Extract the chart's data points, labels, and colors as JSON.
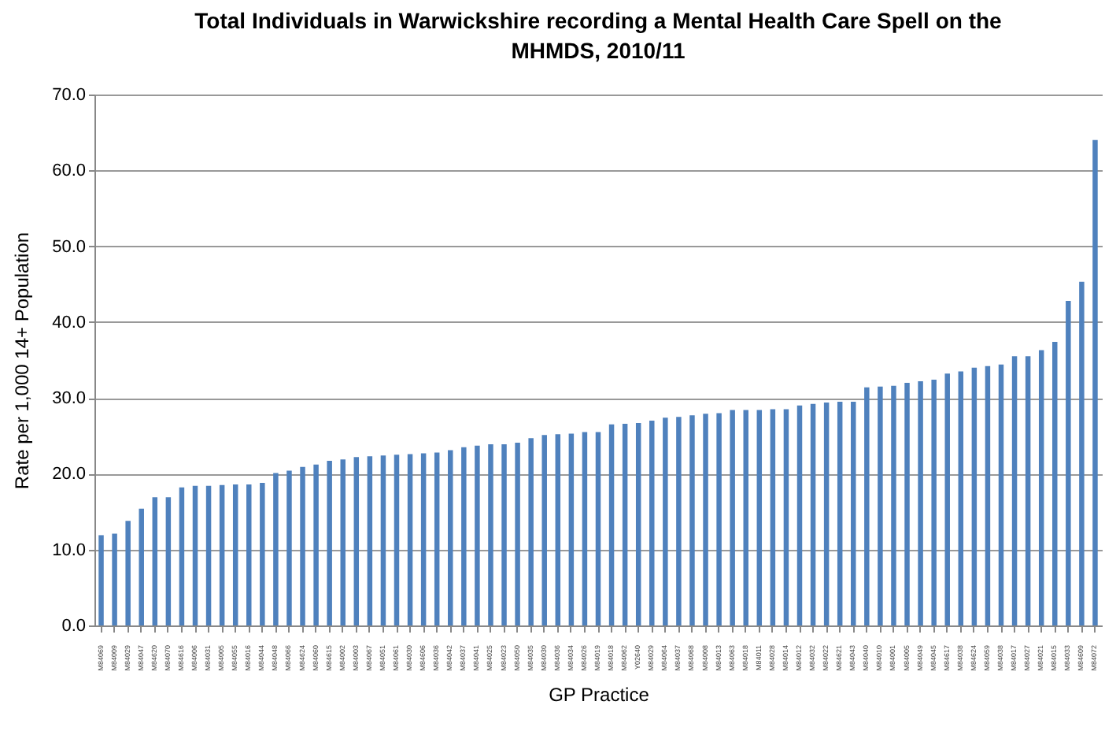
{
  "chart_data": {
    "type": "bar",
    "title": "Total Individuals in Warwickshire recording a Mental Health Care Spell on the MHMDS, 2010/11",
    "xlabel": "GP Practice",
    "ylabel": "Rate per 1,000 14+ Population",
    "categories": [
      "M84069",
      "M84009",
      "M84029",
      "M84047",
      "M84620",
      "M84070",
      "M84616",
      "M84006",
      "M84031",
      "M84005",
      "M84055",
      "M84016",
      "M84044",
      "M84048",
      "M84066",
      "M84624",
      "M84060",
      "M84615",
      "M84002",
      "M84003",
      "M84067",
      "M84051",
      "M84061",
      "M84030",
      "M84606",
      "M84036",
      "M84042",
      "M84037",
      "M84041",
      "M84025",
      "M84023",
      "M84050",
      "M84035",
      "M84030",
      "M84036",
      "M84034",
      "M84026",
      "M84019",
      "M84018",
      "M84062",
      "Y02640",
      "M84029",
      "M84064",
      "M84037",
      "M84068",
      "M84008",
      "M84013",
      "M84063",
      "M84018",
      "M84011",
      "M84028",
      "M84014",
      "M84012",
      "M84032",
      "M84022",
      "M84621",
      "M84043",
      "M84040",
      "M84010",
      "M84001",
      "M84005",
      "M84049",
      "M84045",
      "M84617",
      "M84038",
      "M84624",
      "M84059",
      "M84038",
      "M84017",
      "M84027",
      "M84021",
      "M84015",
      "M84033",
      "M84609",
      "M84072"
    ],
    "series": [
      {
        "color": "#4f81bd",
        "values": [
          11.9,
          12.1,
          13.8,
          15.4,
          16.9,
          16.9,
          18.2,
          18.4,
          18.4,
          18.5,
          18.6,
          18.6,
          18.8,
          20.1,
          20.4,
          20.9,
          21.2,
          21.7,
          21.9,
          22.2,
          22.3,
          22.4,
          22.5,
          22.6,
          22.7,
          22.8,
          23.1,
          23.5,
          23.7,
          23.9,
          23.9,
          24.1,
          24.7,
          25.1,
          25.2,
          25.3,
          25.5,
          25.5,
          26.5,
          26.6,
          26.7,
          27.0,
          27.4,
          27.5,
          27.7,
          27.9,
          28.0,
          28.4,
          28.4,
          28.4,
          28.5,
          28.5,
          29.0,
          29.2,
          29.4,
          29.5,
          29.5,
          31.4,
          31.5,
          31.6,
          32.0,
          32.2,
          32.4,
          33.2,
          33.5,
          34.0,
          34.2,
          34.4,
          35.5,
          35.5,
          36.3,
          37.4,
          42.8,
          45.3,
          64.0
        ]
      }
    ],
    "ylim": [
      0,
      70
    ],
    "yticks": [
      {
        "value": 0,
        "label": "0.0"
      },
      {
        "value": 10,
        "label": "10.0"
      },
      {
        "value": 20,
        "label": "20.0"
      },
      {
        "value": 30,
        "label": "30.0"
      },
      {
        "value": 40,
        "label": "40.0"
      },
      {
        "value": 50,
        "label": "50.0"
      },
      {
        "value": 60,
        "label": "60.0"
      },
      {
        "value": 70,
        "label": "70.0"
      }
    ],
    "grid": "y",
    "legend": false
  }
}
